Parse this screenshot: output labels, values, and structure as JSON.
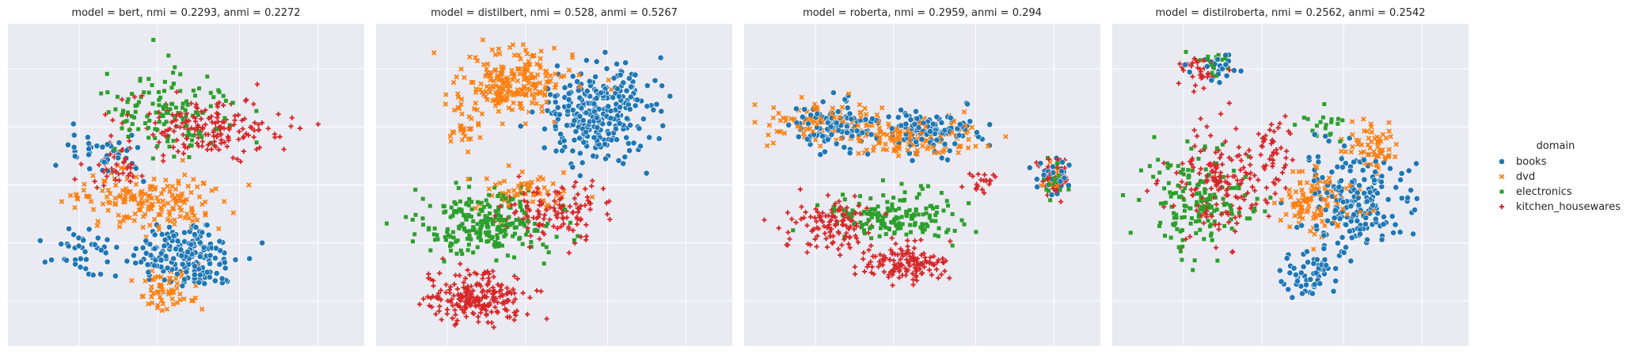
{
  "chart_data": {
    "type": "scatter",
    "grid": true,
    "legend": {
      "title": "domain",
      "placement": "right",
      "entries": [
        {
          "name": "books",
          "color": "#1f77b4",
          "marker": "circle"
        },
        {
          "name": "dvd",
          "color": "#ff7f0e",
          "marker": "x"
        },
        {
          "name": "electronics",
          "color": "#2ca02c",
          "marker": "square"
        },
        {
          "name": "kitchen_housewares",
          "color": "#d62728",
          "marker": "plus"
        }
      ]
    },
    "panels": [
      {
        "title": "model = bert, nmi = 0.2293, anmi = 0.2272",
        "clusters": [
          {
            "series": 0,
            "cx": 0.5,
            "cy": 0.72,
            "rx": 0.14,
            "ry": 0.1,
            "n": 180
          },
          {
            "series": 0,
            "cx": 0.27,
            "cy": 0.4,
            "rx": 0.1,
            "ry": 0.07,
            "n": 40
          },
          {
            "series": 0,
            "cx": 0.2,
            "cy": 0.7,
            "rx": 0.08,
            "ry": 0.06,
            "n": 40
          },
          {
            "series": 1,
            "cx": 0.4,
            "cy": 0.55,
            "rx": 0.18,
            "ry": 0.08,
            "n": 180
          },
          {
            "series": 1,
            "cx": 0.45,
            "cy": 0.82,
            "rx": 0.08,
            "ry": 0.06,
            "n": 60
          },
          {
            "series": 2,
            "cx": 0.45,
            "cy": 0.28,
            "rx": 0.15,
            "ry": 0.12,
            "n": 130
          },
          {
            "series": 3,
            "cx": 0.55,
            "cy": 0.32,
            "rx": 0.2,
            "ry": 0.08,
            "n": 180
          },
          {
            "series": 3,
            "cx": 0.3,
            "cy": 0.45,
            "rx": 0.08,
            "ry": 0.06,
            "n": 40
          }
        ]
      },
      {
        "title": "model = distilbert, nmi = 0.528, anmi = 0.5267",
        "clusters": [
          {
            "series": 0,
            "cx": 0.62,
            "cy": 0.28,
            "rx": 0.14,
            "ry": 0.14,
            "n": 280
          },
          {
            "series": 1,
            "cx": 0.38,
            "cy": 0.18,
            "rx": 0.13,
            "ry": 0.09,
            "n": 220
          },
          {
            "series": 1,
            "cx": 0.25,
            "cy": 0.33,
            "rx": 0.05,
            "ry": 0.08,
            "n": 30
          },
          {
            "series": 1,
            "cx": 0.42,
            "cy": 0.52,
            "rx": 0.14,
            "ry": 0.05,
            "n": 60
          },
          {
            "series": 2,
            "cx": 0.3,
            "cy": 0.62,
            "rx": 0.17,
            "ry": 0.09,
            "n": 240
          },
          {
            "series": 3,
            "cx": 0.28,
            "cy": 0.85,
            "rx": 0.13,
            "ry": 0.07,
            "n": 220
          },
          {
            "series": 3,
            "cx": 0.5,
            "cy": 0.58,
            "rx": 0.14,
            "ry": 0.09,
            "n": 120
          }
        ]
      },
      {
        "title": "model = roberta, nmi = 0.2959, anmi = 0.294",
        "clusters": [
          {
            "series": 0,
            "cx": 0.26,
            "cy": 0.32,
            "rx": 0.1,
            "ry": 0.07,
            "n": 120
          },
          {
            "series": 0,
            "cx": 0.52,
            "cy": 0.33,
            "rx": 0.12,
            "ry": 0.07,
            "n": 120
          },
          {
            "series": 0,
            "cx": 0.87,
            "cy": 0.47,
            "rx": 0.04,
            "ry": 0.05,
            "n": 40
          },
          {
            "series": 1,
            "cx": 0.2,
            "cy": 0.3,
            "rx": 0.12,
            "ry": 0.06,
            "n": 80
          },
          {
            "series": 1,
            "cx": 0.44,
            "cy": 0.35,
            "rx": 0.18,
            "ry": 0.06,
            "n": 140
          },
          {
            "series": 1,
            "cx": 0.87,
            "cy": 0.47,
            "rx": 0.03,
            "ry": 0.04,
            "n": 20
          },
          {
            "series": 2,
            "cx": 0.42,
            "cy": 0.6,
            "rx": 0.15,
            "ry": 0.07,
            "n": 160
          },
          {
            "series": 2,
            "cx": 0.87,
            "cy": 0.49,
            "rx": 0.03,
            "ry": 0.04,
            "n": 20
          },
          {
            "series": 3,
            "cx": 0.25,
            "cy": 0.62,
            "rx": 0.1,
            "ry": 0.07,
            "n": 120
          },
          {
            "series": 3,
            "cx": 0.46,
            "cy": 0.74,
            "rx": 0.11,
            "ry": 0.05,
            "n": 140
          },
          {
            "series": 3,
            "cx": 0.87,
            "cy": 0.48,
            "rx": 0.04,
            "ry": 0.05,
            "n": 50
          },
          {
            "series": 3,
            "cx": 0.67,
            "cy": 0.49,
            "rx": 0.04,
            "ry": 0.03,
            "n": 20
          }
        ]
      },
      {
        "title": "model = distilroberta, nmi = 0.2562, anmi = 0.2542",
        "clusters": [
          {
            "series": 0,
            "cx": 0.68,
            "cy": 0.55,
            "rx": 0.12,
            "ry": 0.14,
            "n": 200
          },
          {
            "series": 0,
            "cx": 0.55,
            "cy": 0.78,
            "rx": 0.08,
            "ry": 0.06,
            "n": 60
          },
          {
            "series": 0,
            "cx": 0.3,
            "cy": 0.14,
            "rx": 0.06,
            "ry": 0.04,
            "n": 25
          },
          {
            "series": 1,
            "cx": 0.58,
            "cy": 0.55,
            "rx": 0.1,
            "ry": 0.1,
            "n": 120
          },
          {
            "series": 1,
            "cx": 0.72,
            "cy": 0.38,
            "rx": 0.07,
            "ry": 0.07,
            "n": 60
          },
          {
            "series": 2,
            "cx": 0.25,
            "cy": 0.55,
            "rx": 0.13,
            "ry": 0.14,
            "n": 160
          },
          {
            "series": 2,
            "cx": 0.28,
            "cy": 0.12,
            "rx": 0.05,
            "ry": 0.04,
            "n": 15
          },
          {
            "series": 2,
            "cx": 0.6,
            "cy": 0.32,
            "rx": 0.06,
            "ry": 0.04,
            "n": 20
          },
          {
            "series": 3,
            "cx": 0.3,
            "cy": 0.5,
            "rx": 0.13,
            "ry": 0.15,
            "n": 170
          },
          {
            "series": 3,
            "cx": 0.25,
            "cy": 0.15,
            "rx": 0.06,
            "ry": 0.04,
            "n": 30
          },
          {
            "series": 3,
            "cx": 0.45,
            "cy": 0.4,
            "rx": 0.05,
            "ry": 0.08,
            "n": 40
          }
        ]
      }
    ]
  }
}
